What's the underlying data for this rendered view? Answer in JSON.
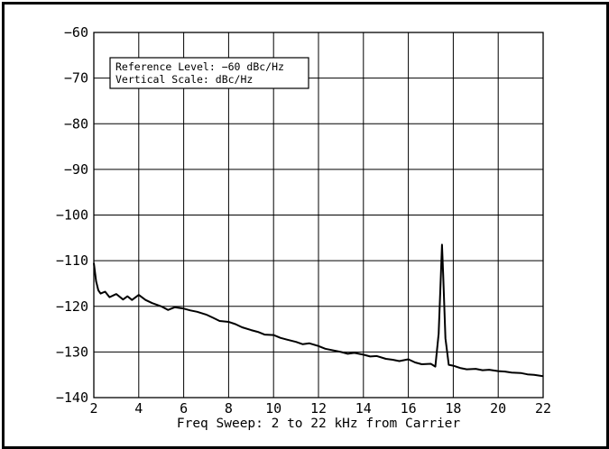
{
  "chart_data": {
    "type": "line",
    "title": "",
    "xlabel": "Freq Sweep: 2 to 22 kHz from Carrier",
    "ylabel": "",
    "xlim": [
      2,
      22
    ],
    "ylim": [
      -140,
      -60
    ],
    "x_ticks": [
      2,
      4,
      6,
      8,
      10,
      12,
      14,
      16,
      18,
      20,
      22
    ],
    "y_ticks": [
      -60,
      -70,
      -80,
      -90,
      -100,
      -110,
      -120,
      -130,
      -140
    ],
    "x_tick_labels": [
      "2",
      "4",
      "6",
      "8",
      "10",
      "12",
      "14",
      "16",
      "18",
      "20",
      "22"
    ],
    "y_tick_labels": [
      "−60",
      "−70",
      "−80",
      "−90",
      "−100",
      "−110",
      "−120",
      "−130",
      "−140"
    ],
    "grid": true,
    "annotation": {
      "lines": [
        "Reference Level: −60 dBc/Hz",
        "Vertical Scale: dBc/Hz"
      ],
      "placement": "top-left"
    },
    "series": [
      {
        "color": "#000000",
        "x": [
          2.0,
          2.1,
          2.2,
          2.3,
          2.5,
          2.7,
          3.0,
          3.3,
          3.5,
          3.7,
          4.0,
          4.3,
          4.6,
          5.0,
          5.3,
          5.6,
          6.0,
          6.3,
          6.6,
          7.0,
          7.3,
          7.6,
          8.0,
          8.3,
          8.6,
          9.0,
          9.3,
          9.6,
          10.0,
          10.3,
          10.6,
          11.0,
          11.3,
          11.6,
          12.0,
          12.3,
          12.6,
          13.0,
          13.3,
          13.6,
          14.0,
          14.3,
          14.6,
          15.0,
          15.3,
          15.6,
          16.0,
          16.3,
          16.6,
          17.0,
          17.2,
          17.35,
          17.45,
          17.5,
          17.55,
          17.65,
          17.8,
          18.0,
          18.3,
          18.6,
          19.0,
          19.3,
          19.6,
          20.0,
          20.3,
          20.6,
          21.0,
          21.3,
          21.6,
          22.0
        ],
        "y": [
          -110.5,
          -114.5,
          -116.5,
          -117.2,
          -116.8,
          -118.0,
          -117.3,
          -118.5,
          -117.8,
          -118.6,
          -117.5,
          -118.6,
          -119.3,
          -120.0,
          -120.8,
          -120.2,
          -120.5,
          -120.9,
          -121.2,
          -121.8,
          -122.5,
          -123.2,
          -123.4,
          -123.9,
          -124.6,
          -125.2,
          -125.6,
          -126.2,
          -126.3,
          -126.9,
          -127.3,
          -127.8,
          -128.3,
          -128.1,
          -128.7,
          -129.3,
          -129.6,
          -130.0,
          -130.4,
          -130.2,
          -130.6,
          -131.0,
          -130.9,
          -131.5,
          -131.7,
          -132.0,
          -131.6,
          -132.3,
          -132.7,
          -132.6,
          -133.2,
          -126.0,
          -113.0,
          -106.5,
          -113.0,
          -127.0,
          -132.8,
          -133.0,
          -133.5,
          -133.8,
          -133.7,
          -134.0,
          -133.9,
          -134.2,
          -134.3,
          -134.5,
          -134.6,
          -134.9,
          -135.0,
          -135.3
        ]
      }
    ]
  }
}
